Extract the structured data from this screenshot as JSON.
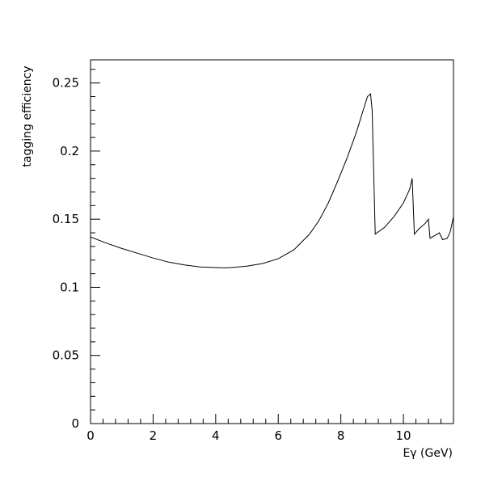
{
  "chart_data": {
    "type": "line",
    "title": "",
    "xlabel": "Eγ (GeV)",
    "ylabel": "tagging efficiency",
    "xlim": [
      0,
      11.6
    ],
    "ylim": [
      0,
      0.267
    ],
    "xticks": [
      0,
      2,
      4,
      6,
      8,
      10
    ],
    "xtick_labels": [
      "0",
      "2",
      "4",
      "6",
      "8",
      "10"
    ],
    "x_minor_step": 0.4,
    "yticks": [
      0,
      0.05,
      0.1,
      0.15,
      0.2,
      0.25
    ],
    "ytick_labels": [
      "0",
      "0.05",
      "0.1",
      "0.15",
      "0.2",
      "0.25"
    ],
    "y_minor_step": 0.01,
    "grid": false,
    "series": [
      {
        "x": [
          0,
          0.5,
          1.0,
          1.5,
          2.0,
          2.5,
          3.0,
          3.5,
          4.0,
          4.3,
          4.5,
          5.0,
          5.5,
          6.0,
          6.5,
          7.0,
          7.3,
          7.6,
          7.9,
          8.2,
          8.5,
          8.7,
          8.85,
          8.95,
          9.0,
          9.1,
          9.4,
          9.7,
          10.0,
          10.2,
          10.28,
          10.35,
          10.5,
          10.7,
          10.8,
          10.85,
          11.0,
          11.15,
          11.25,
          11.4,
          11.5,
          11.6
        ],
        "y": [
          0.137,
          0.1325,
          0.1285,
          0.125,
          0.1215,
          0.1185,
          0.1165,
          0.115,
          0.1145,
          0.1143,
          0.1145,
          0.1155,
          0.1175,
          0.121,
          0.1275,
          0.139,
          0.149,
          0.162,
          0.178,
          0.195,
          0.214,
          0.229,
          0.24,
          0.242,
          0.23,
          0.139,
          0.144,
          0.152,
          0.162,
          0.172,
          0.18,
          0.139,
          0.143,
          0.147,
          0.15,
          0.136,
          0.138,
          0.14,
          0.135,
          0.136,
          0.141,
          0.152
        ]
      }
    ]
  }
}
